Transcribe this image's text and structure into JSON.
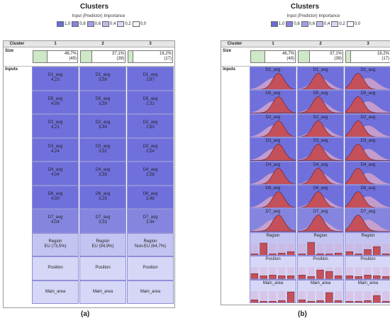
{
  "panels": [
    {
      "title": "Clusters",
      "caption": "(a)",
      "legend_title": "Input (Predictor) Importance",
      "legend": [
        {
          "label": "1,0",
          "color": "#6b6bd6"
        },
        {
          "label": "0,8",
          "color": "#8585df"
        },
        {
          "label": "0,6",
          "color": "#a0a0e8"
        },
        {
          "label": "0,4",
          "color": "#bcbcf0"
        },
        {
          "label": "0,2",
          "color": "#d9d9f7"
        },
        {
          "label": "0,0",
          "color": "#f4f4fd"
        }
      ],
      "header": {
        "cluster": "Cluster",
        "c1": "1",
        "c2": "2",
        "c3": "3"
      },
      "size_label": "Size",
      "inputs_label": "Inputs",
      "sizes": [
        {
          "pct": "46,7%",
          "n": "(49)",
          "value": 46.7
        },
        {
          "pct": "37,1%",
          "n": "(39)",
          "value": 37.1
        },
        {
          "pct": "16,2%",
          "n": "(17)",
          "value": 16.2
        }
      ],
      "rows": [
        {
          "name": "D1_avg",
          "values": [
            "4,23",
            "3,58",
            "2,87"
          ],
          "importance": 1.0
        },
        {
          "name": "D5_avg",
          "values": [
            "4,09",
            "3,39",
            "2,31"
          ],
          "importance": 1.0
        },
        {
          "name": "D2_avg",
          "values": [
            "4,21",
            "3,49",
            "2,63"
          ],
          "importance": 1.0
        },
        {
          "name": "D3_avg",
          "values": [
            "4,24",
            "3,52",
            "2,54"
          ],
          "importance": 1.0
        },
        {
          "name": "D4_avg",
          "values": [
            "4,04",
            "3,39",
            "2,58"
          ],
          "importance": 1.0
        },
        {
          "name": "D6_avg",
          "values": [
            "4,00",
            "3,25",
            "2,46"
          ],
          "importance": 1.0
        },
        {
          "name": "D7_avg",
          "values": [
            "4,04",
            "3,33",
            "2,44"
          ],
          "importance": 0.9
        },
        {
          "name": "Region",
          "values": [
            "EU (73,5%)",
            "EU (94,9%)",
            "Non-EU (64,7%)"
          ],
          "importance": 0.4
        },
        {
          "name": "Position",
          "values": [
            "",
            "",
            ""
          ],
          "importance": 0.2
        },
        {
          "name": "Main_area",
          "values": [
            "",
            "",
            ""
          ],
          "importance": 0.2
        }
      ]
    },
    {
      "title": "Clusters",
      "caption": "(b)",
      "legend_title": "Input (Predictor) Importance",
      "legend": [
        {
          "label": "1,0",
          "color": "#6b6bd6"
        },
        {
          "label": "0,8",
          "color": "#8585df"
        },
        {
          "label": "0,6",
          "color": "#a0a0e8"
        },
        {
          "label": "0,4",
          "color": "#bcbcf0"
        },
        {
          "label": "0,2",
          "color": "#d9d9f7"
        },
        {
          "label": "0,0",
          "color": "#f4f4fd"
        }
      ],
      "header": {
        "cluster": "Cluster",
        "c1": "1",
        "c2": "2",
        "c3": "3"
      },
      "size_label": "Size",
      "inputs_label": "Inputs",
      "sizes": [
        {
          "pct": "46,7%",
          "n": "(49)",
          "value": 46.7
        },
        {
          "pct": "37,1%",
          "n": "(39)",
          "value": 37.1
        },
        {
          "pct": "16,2%",
          "n": "(17)",
          "value": 16.2
        }
      ],
      "dist_rows": [
        {
          "name": "D1_avg",
          "importance": 1.0,
          "kind": "curve"
        },
        {
          "name": "D5_avg",
          "importance": 1.0,
          "kind": "curve"
        },
        {
          "name": "D2_avg",
          "importance": 1.0,
          "kind": "curve"
        },
        {
          "name": "D3_avg",
          "importance": 1.0,
          "kind": "curve"
        },
        {
          "name": "D4_avg",
          "importance": 1.0,
          "kind": "curve"
        },
        {
          "name": "D6_avg",
          "importance": 1.0,
          "kind": "curve"
        },
        {
          "name": "D7_avg",
          "importance": 0.9,
          "kind": "curve"
        },
        {
          "name": "Region",
          "importance": 0.4,
          "kind": "bars"
        },
        {
          "name": "Position",
          "importance": 0.2,
          "kind": "bars"
        },
        {
          "name": "Main_area",
          "importance": 0.2,
          "kind": "bars"
        }
      ]
    }
  ],
  "colors": {
    "curve_fill": "#c4505a",
    "curve_stroke": "#6a1c22",
    "ghost": "#d8a6c8",
    "bar_fill": "#c4505a"
  }
}
